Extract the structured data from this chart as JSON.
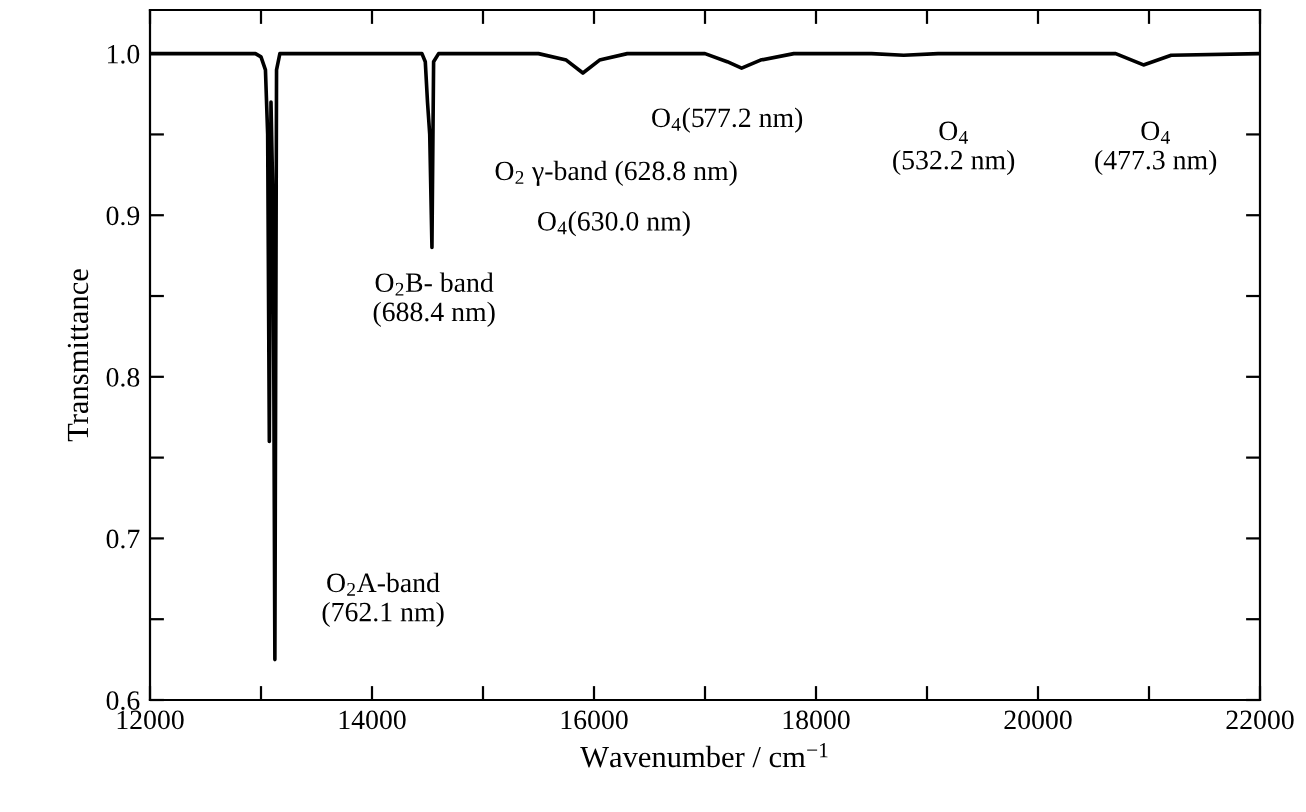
{
  "chart_data": {
    "type": "line",
    "xlabel": "Wavenumber / cm$^{−1}$",
    "ylabel": "Transmittance",
    "x": [
      12000,
      12500,
      12950,
      13000,
      13040,
      13060,
      13075,
      13090,
      13110,
      13125,
      13140,
      13170,
      13300,
      14000,
      14450,
      14480,
      14500,
      14520,
      14540,
      14555,
      14600,
      15500,
      15750,
      15900,
      16050,
      16300,
      17000,
      17200,
      17330,
      17500,
      17800,
      18500,
      18790,
      19100,
      19500,
      20700,
      20950,
      21200,
      22000
    ],
    "series": [
      {
        "color": "#000000",
        "values": [
          1.0,
          1.0,
          1.0,
          0.998,
          0.99,
          0.95,
          0.76,
          0.97,
          0.9,
          0.625,
          0.99,
          1.0,
          1.0,
          1.0,
          1.0,
          0.995,
          0.97,
          0.95,
          0.88,
          0.995,
          1.0,
          1.0,
          0.996,
          0.988,
          0.996,
          1.0,
          1.0,
          0.995,
          0.991,
          0.996,
          1.0,
          1.0,
          0.999,
          1.0,
          1.0,
          1.0,
          0.993,
          0.999,
          1.0
        ]
      }
    ],
    "xlim": [
      12000,
      22000
    ],
    "ylim": [
      0.6,
      1.027
    ],
    "xticks": [
      12000,
      {
        "value": 13000,
        "label": null
      },
      14000,
      {
        "value": 15000,
        "label": null
      },
      16000,
      {
        "value": 17000,
        "label": null
      },
      18000,
      {
        "value": 19000,
        "label": null
      },
      20000,
      {
        "value": 21000,
        "label": null
      },
      22000
    ],
    "yticks": [
      {
        "value": 0.6,
        "label": "0.6"
      },
      {
        "value": 0.65,
        "label": null
      },
      {
        "value": 0.7,
        "label": "0.7"
      },
      {
        "value": 0.75,
        "label": null
      },
      {
        "value": 0.8,
        "label": "0.8"
      },
      {
        "value": 0.85,
        "label": null
      },
      {
        "value": 0.9,
        "label": "0.9"
      },
      {
        "value": 0.95,
        "label": null
      },
      {
        "value": 1.0,
        "label": "1.0"
      }
    ],
    "grid": false,
    "legend": false,
    "marker": "none",
    "line_style": "solid",
    "annotations": [
      "O$_{2}$A-band\n(762.1 nm)",
      "O$_{2}$B- band\n(688.4 nm)",
      "O$_{2}$ γ-band (628.8 nm)",
      "O$_{4}$(630.0 nm)",
      "O$_{4}$(577.2 nm)",
      "O$_{4}$\n(532.2 nm)",
      "O$_{4}$\n(477.3 nm)"
    ]
  }
}
